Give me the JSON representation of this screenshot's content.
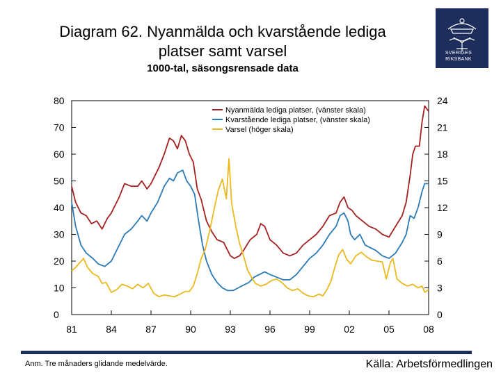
{
  "header": {
    "title_line1": "Diagram 62. Nyanmälda och kvarstående lediga",
    "title_line2": "platser samt varsel",
    "subtitle": "1000-tal, säsongsrensade data"
  },
  "logo": {
    "line1": "SVERIGES",
    "line2": "RIKSBANK"
  },
  "footer": {
    "note": "Anm. Tre månaders glidande medelvärde.",
    "source": "Källa: Arbetsförmedlingen"
  },
  "colors": {
    "series1": "#a52020",
    "series2": "#2a7ab8",
    "series3": "#ebb81e",
    "brand": "#1d2d5c"
  },
  "chart_data": {
    "type": "line",
    "title": "Diagram 62. Nyanmälda och kvarstående lediga platser samt varsel",
    "subtitle": "1000-tal, säsongsrensade data",
    "xlim": [
      1981,
      2008
    ],
    "left_axis": {
      "ylim": [
        0,
        80
      ],
      "ticks": [
        "0",
        "10",
        "20",
        "30",
        "40",
        "50",
        "60",
        "70",
        "80"
      ]
    },
    "right_axis": {
      "ylim": [
        0,
        24
      ],
      "ticks": [
        "0",
        "3",
        "6",
        "9",
        "12",
        "15",
        "18",
        "21",
        "24"
      ]
    },
    "x_ticks": [
      {
        "year": 1981,
        "label": "81"
      },
      {
        "year": 1984,
        "label": "84"
      },
      {
        "year": 1987,
        "label": "87"
      },
      {
        "year": 1990,
        "label": "90"
      },
      {
        "year": 1993,
        "label": "93"
      },
      {
        "year": 1996,
        "label": "96"
      },
      {
        "year": 1999,
        "label": "99"
      },
      {
        "year": 2002,
        "label": "02"
      },
      {
        "year": 2005,
        "label": "05"
      },
      {
        "year": 2008,
        "label": "08"
      }
    ],
    "legend_position": "top-right",
    "series": [
      {
        "name": "Nyanmälda lediga platser, (vänster skala)",
        "axis": "left",
        "points": [
          [
            1981.0,
            48
          ],
          [
            1981.3,
            42
          ],
          [
            1981.7,
            38
          ],
          [
            1982.1,
            37
          ],
          [
            1982.5,
            34
          ],
          [
            1982.9,
            35
          ],
          [
            1983.3,
            32
          ],
          [
            1983.7,
            36
          ],
          [
            1984.0,
            38
          ],
          [
            1984.3,
            41
          ],
          [
            1984.6,
            44
          ],
          [
            1985.0,
            49
          ],
          [
            1985.5,
            48
          ],
          [
            1986.0,
            48
          ],
          [
            1986.3,
            50
          ],
          [
            1986.7,
            47
          ],
          [
            1987.0,
            49
          ],
          [
            1987.3,
            52
          ],
          [
            1987.6,
            55
          ],
          [
            1988.0,
            60
          ],
          [
            1988.4,
            66
          ],
          [
            1988.7,
            65
          ],
          [
            1989.0,
            62
          ],
          [
            1989.3,
            67
          ],
          [
            1989.6,
            65
          ],
          [
            1989.9,
            60
          ],
          [
            1990.2,
            57
          ],
          [
            1990.5,
            47
          ],
          [
            1990.8,
            43
          ],
          [
            1991.2,
            35
          ],
          [
            1991.6,
            31
          ],
          [
            1992.0,
            28
          ],
          [
            1992.5,
            27
          ],
          [
            1993.0,
            22
          ],
          [
            1993.3,
            21
          ],
          [
            1993.7,
            22
          ],
          [
            1994.0,
            24
          ],
          [
            1994.5,
            28
          ],
          [
            1995.0,
            30
          ],
          [
            1995.3,
            34
          ],
          [
            1995.6,
            33
          ],
          [
            1996.0,
            28
          ],
          [
            1996.5,
            26
          ],
          [
            1997.0,
            23
          ],
          [
            1997.5,
            22
          ],
          [
            1998.0,
            23
          ],
          [
            1998.5,
            26
          ],
          [
            1999.0,
            28
          ],
          [
            1999.5,
            30
          ],
          [
            2000.0,
            33
          ],
          [
            2000.5,
            37
          ],
          [
            2001.0,
            38
          ],
          [
            2001.3,
            42
          ],
          [
            2001.6,
            44
          ],
          [
            2001.9,
            40
          ],
          [
            2002.2,
            39
          ],
          [
            2002.5,
            37
          ],
          [
            2003.0,
            35
          ],
          [
            2003.5,
            33
          ],
          [
            2004.0,
            32
          ],
          [
            2004.5,
            30
          ],
          [
            2005.0,
            29
          ],
          [
            2005.5,
            33
          ],
          [
            2006.0,
            37
          ],
          [
            2006.3,
            42
          ],
          [
            2006.6,
            52
          ],
          [
            2006.8,
            60
          ],
          [
            2007.0,
            63
          ],
          [
            2007.3,
            63
          ],
          [
            2007.5,
            72
          ],
          [
            2007.7,
            78
          ],
          [
            2008.0,
            76
          ]
        ]
      },
      {
        "name": "Kvarstående lediga platser, (vänster skala)",
        "axis": "left",
        "points": [
          [
            1981.0,
            42
          ],
          [
            1981.3,
            33
          ],
          [
            1981.7,
            26
          ],
          [
            1982.1,
            23
          ],
          [
            1982.6,
            21
          ],
          [
            1983.0,
            19
          ],
          [
            1983.5,
            18
          ],
          [
            1984.0,
            20
          ],
          [
            1984.3,
            23
          ],
          [
            1984.7,
            27
          ],
          [
            1985.0,
            30
          ],
          [
            1985.5,
            32
          ],
          [
            1986.0,
            35
          ],
          [
            1986.3,
            37
          ],
          [
            1986.7,
            35
          ],
          [
            1987.0,
            38
          ],
          [
            1987.5,
            42
          ],
          [
            1988.0,
            48
          ],
          [
            1988.4,
            51
          ],
          [
            1988.7,
            50
          ],
          [
            1989.0,
            53
          ],
          [
            1989.4,
            54
          ],
          [
            1989.7,
            50
          ],
          [
            1990.0,
            48
          ],
          [
            1990.3,
            45
          ],
          [
            1990.6,
            35
          ],
          [
            1990.9,
            26
          ],
          [
            1991.2,
            20
          ],
          [
            1991.6,
            15
          ],
          [
            1992.0,
            12
          ],
          [
            1992.4,
            10
          ],
          [
            1992.8,
            9
          ],
          [
            1993.2,
            9
          ],
          [
            1993.6,
            10
          ],
          [
            1994.0,
            11
          ],
          [
            1994.4,
            12
          ],
          [
            1994.8,
            14
          ],
          [
            1995.2,
            15
          ],
          [
            1995.6,
            16
          ],
          [
            1996.0,
            15
          ],
          [
            1996.5,
            14
          ],
          [
            1997.0,
            13
          ],
          [
            1997.5,
            13
          ],
          [
            1998.0,
            15
          ],
          [
            1998.5,
            18
          ],
          [
            1999.0,
            21
          ],
          [
            1999.5,
            23
          ],
          [
            2000.0,
            26
          ],
          [
            2000.5,
            30
          ],
          [
            2001.0,
            33
          ],
          [
            2001.3,
            37
          ],
          [
            2001.6,
            38
          ],
          [
            2001.9,
            35
          ],
          [
            2002.1,
            30
          ],
          [
            2002.4,
            28
          ],
          [
            2002.8,
            30
          ],
          [
            2003.2,
            26
          ],
          [
            2003.6,
            25
          ],
          [
            2004.0,
            24
          ],
          [
            2004.5,
            22
          ],
          [
            2005.0,
            21
          ],
          [
            2005.5,
            23
          ],
          [
            2006.0,
            27
          ],
          [
            2006.3,
            30
          ],
          [
            2006.6,
            37
          ],
          [
            2006.9,
            36
          ],
          [
            2007.2,
            40
          ],
          [
            2007.5,
            46
          ],
          [
            2007.7,
            49
          ],
          [
            2008.0,
            49
          ]
        ]
      },
      {
        "name": "Varsel (höger skala)",
        "axis": "right",
        "points": [
          [
            1981.0,
            4.9
          ],
          [
            1981.3,
            5.3
          ],
          [
            1981.6,
            5.8
          ],
          [
            1981.9,
            6.3
          ],
          [
            1982.2,
            5.3
          ],
          [
            1982.6,
            4.6
          ],
          [
            1983.0,
            4.3
          ],
          [
            1983.3,
            3.5
          ],
          [
            1983.6,
            3.6
          ],
          [
            1984.0,
            2.5
          ],
          [
            1984.4,
            2.8
          ],
          [
            1984.8,
            3.4
          ],
          [
            1985.2,
            3.2
          ],
          [
            1985.6,
            2.9
          ],
          [
            1986.0,
            3.4
          ],
          [
            1986.4,
            3.0
          ],
          [
            1986.8,
            3.5
          ],
          [
            1987.2,
            2.4
          ],
          [
            1987.6,
            2.0
          ],
          [
            1988.0,
            2.2
          ],
          [
            1988.4,
            2.1
          ],
          [
            1988.8,
            2.0
          ],
          [
            1989.2,
            2.3
          ],
          [
            1989.6,
            2.6
          ],
          [
            1989.9,
            2.6
          ],
          [
            1990.2,
            3.2
          ],
          [
            1990.5,
            4.6
          ],
          [
            1990.8,
            6.3
          ],
          [
            1991.1,
            7.3
          ],
          [
            1991.5,
            9.8
          ],
          [
            1991.8,
            12.0
          ],
          [
            1992.1,
            14.0
          ],
          [
            1992.4,
            15.2
          ],
          [
            1992.7,
            13.0
          ],
          [
            1992.9,
            17.5
          ],
          [
            1993.1,
            12.5
          ],
          [
            1993.4,
            10.0
          ],
          [
            1993.7,
            8.0
          ],
          [
            1994.0,
            6.6
          ],
          [
            1994.3,
            5.0
          ],
          [
            1994.6,
            4.2
          ],
          [
            1994.9,
            3.5
          ],
          [
            1995.3,
            3.2
          ],
          [
            1995.7,
            3.4
          ],
          [
            1996.1,
            3.8
          ],
          [
            1996.5,
            4.0
          ],
          [
            1996.9,
            3.6
          ],
          [
            1997.3,
            3.0
          ],
          [
            1997.7,
            2.7
          ],
          [
            1998.1,
            2.9
          ],
          [
            1998.5,
            2.4
          ],
          [
            1998.9,
            2.1
          ],
          [
            1999.3,
            2.0
          ],
          [
            1999.7,
            2.3
          ],
          [
            2000.0,
            2.1
          ],
          [
            2000.3,
            2.8
          ],
          [
            2000.6,
            3.7
          ],
          [
            2000.9,
            5.3
          ],
          [
            2001.2,
            6.7
          ],
          [
            2001.5,
            7.3
          ],
          [
            2001.8,
            6.2
          ],
          [
            2002.1,
            5.7
          ],
          [
            2002.5,
            6.6
          ],
          [
            2002.9,
            7.0
          ],
          [
            2003.3,
            6.5
          ],
          [
            2003.7,
            6.1
          ],
          [
            2004.1,
            6.0
          ],
          [
            2004.5,
            5.9
          ],
          [
            2004.8,
            4.0
          ],
          [
            2005.1,
            5.8
          ],
          [
            2005.3,
            6.3
          ],
          [
            2005.6,
            4.0
          ],
          [
            2006.0,
            3.5
          ],
          [
            2006.4,
            3.2
          ],
          [
            2006.8,
            3.4
          ],
          [
            2007.2,
            3.0
          ],
          [
            2007.5,
            3.2
          ],
          [
            2007.7,
            2.5
          ],
          [
            2008.0,
            2.8
          ]
        ]
      }
    ]
  }
}
